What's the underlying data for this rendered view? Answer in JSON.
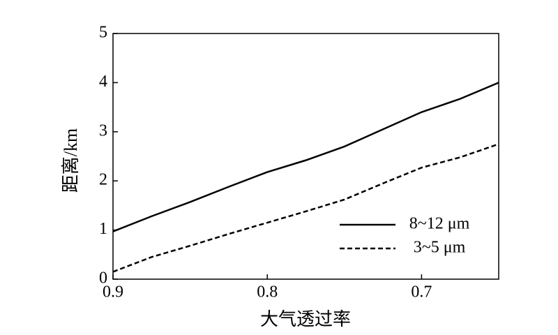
{
  "chart_data": {
    "type": "line",
    "x_label": "大气透过率",
    "y_label": "距离/km",
    "x": [
      0.9,
      0.875,
      0.85,
      0.825,
      0.8,
      0.775,
      0.75,
      0.725,
      0.7,
      0.675,
      0.65
    ],
    "series": [
      {
        "name": "8~12 μm",
        "color": "#000000",
        "line_style": "solid",
        "values": [
          0.97,
          1.28,
          1.57,
          1.88,
          2.18,
          2.42,
          2.7,
          3.05,
          3.4,
          3.67,
          4.0
        ]
      },
      {
        "name": "3~5 μm",
        "color": "#000000",
        "line_style": "dashed",
        "values": [
          0.15,
          0.45,
          0.68,
          0.92,
          1.15,
          1.38,
          1.62,
          1.95,
          2.27,
          2.48,
          2.75
        ]
      }
    ],
    "xlim": [
      0.9,
      0.65
    ],
    "xticks": [
      0.9,
      0.8,
      0.7
    ],
    "ylim": [
      0,
      5
    ],
    "yticks": [
      0,
      1,
      2,
      3,
      4,
      5
    ],
    "legend": "lower right"
  }
}
